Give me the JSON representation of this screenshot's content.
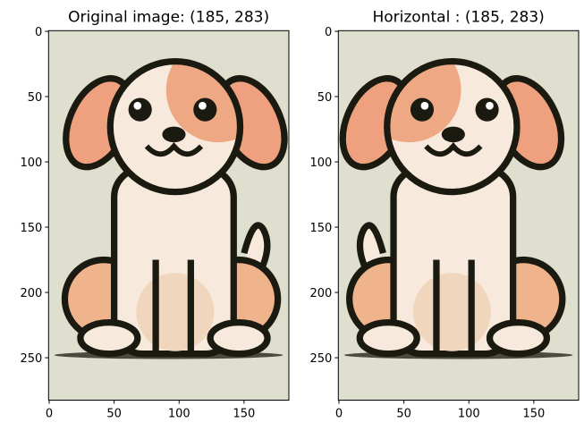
{
  "chart_data": [
    {
      "type": "image",
      "title": "Original image: (185, 283)",
      "flipped": false,
      "xlim": [
        -0.5,
        184.5
      ],
      "ylim": [
        282.5,
        -0.5
      ],
      "xticks": [
        0,
        50,
        100,
        150
      ],
      "yticks": [
        0,
        50,
        100,
        150,
        200,
        250
      ]
    },
    {
      "type": "image",
      "title": "Horizontal : (185, 283)",
      "flipped": true,
      "xlim": [
        -0.5,
        184.5
      ],
      "ylim": [
        282.5,
        -0.5
      ],
      "xticks": [
        0,
        50,
        100,
        150
      ],
      "yticks": [
        0,
        50,
        100,
        150,
        200,
        250
      ]
    }
  ]
}
